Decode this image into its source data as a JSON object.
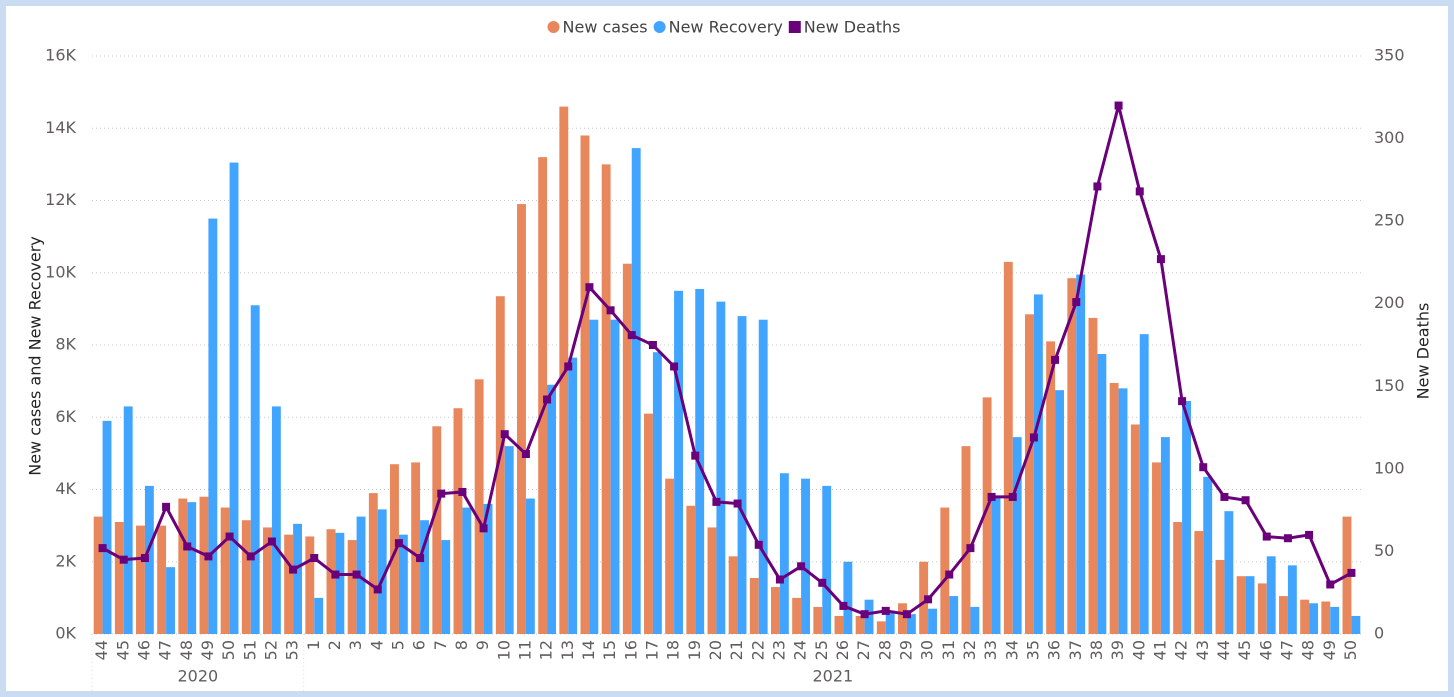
{
  "chart_data": {
    "type": "bar-line",
    "y_label": "New cases and New Recovery",
    "y2_label": "New Deaths",
    "categories": [
      "44",
      "45",
      "46",
      "47",
      "48",
      "49",
      "50",
      "51",
      "52",
      "53",
      "1",
      "2",
      "3",
      "4",
      "5",
      "6",
      "7",
      "8",
      "9",
      "10",
      "11",
      "12",
      "13",
      "14",
      "15",
      "16",
      "17",
      "18",
      "19",
      "20",
      "21",
      "22",
      "23",
      "24",
      "25",
      "26",
      "27",
      "28",
      "29",
      "30",
      "31",
      "32",
      "33",
      "34",
      "35",
      "36",
      "37",
      "38",
      "39",
      "40",
      "41",
      "42",
      "43",
      "44",
      "45",
      "46",
      "47",
      "48",
      "49",
      "50"
    ],
    "groups": [
      {
        "label": "2020",
        "size": 10
      },
      {
        "label": "2021",
        "size": 50
      }
    ],
    "series": [
      {
        "name": "New cases",
        "color": "#e8875c",
        "kind": "bar",
        "values": [
          3250,
          3100,
          3000,
          3000,
          3750,
          3800,
          3500,
          3150,
          2950,
          2750,
          2700,
          2900,
          2600,
          3900,
          4700,
          4750,
          5750,
          6250,
          7050,
          9350,
          11900,
          13200,
          14600,
          13800,
          13000,
          10250,
          6100,
          4300,
          3550,
          2950,
          2150,
          1550,
          1300,
          1000,
          750,
          500,
          500,
          350,
          850,
          2000,
          3500,
          5200,
          6550,
          10300,
          8850,
          8100,
          9850,
          8750,
          6950,
          5800,
          4750,
          3100,
          2850,
          2050,
          1600,
          1400,
          1050,
          950,
          900,
          3250
        ]
      },
      {
        "name": "New Recovery",
        "color": "#41a4ff",
        "kind": "bar",
        "values": [
          5900,
          6300,
          4100,
          1850,
          3650,
          11500,
          13050,
          9100,
          6300,
          3050,
          1000,
          2800,
          3250,
          3450,
          2750,
          3150,
          2600,
          3500,
          3600,
          5200,
          3750,
          6900,
          7650,
          8700,
          8700,
          13450,
          7800,
          9500,
          9550,
          9200,
          8800,
          8700,
          4450,
          4300,
          4100,
          2000,
          950,
          650,
          550,
          700,
          1050,
          750,
          3800,
          5450,
          9400,
          6750,
          9950,
          7750,
          6800,
          8300,
          5450,
          6450,
          4350,
          3400,
          1600,
          2150,
          1900,
          850,
          750,
          500
        ]
      },
      {
        "name": "New Deaths",
        "color": "#6b007b",
        "kind": "line",
        "axis": "y2",
        "values": [
          52,
          45,
          46,
          77,
          53,
          47,
          59,
          47,
          56,
          39,
          46,
          36,
          36,
          27,
          55,
          46,
          85,
          86,
          64,
          121,
          109,
          142,
          162,
          210,
          196,
          181,
          175,
          162,
          108,
          80,
          79,
          54,
          33,
          41,
          31,
          17,
          12,
          14,
          12,
          21,
          36,
          52,
          83,
          83,
          119,
          166,
          201,
          271,
          320,
          268,
          227,
          141,
          101,
          83,
          81,
          59,
          58,
          60,
          30,
          37
        ]
      }
    ],
    "ylim": [
      0,
      16000
    ],
    "yticks": [
      {
        "value": 0,
        "label": "0K"
      },
      {
        "value": 2000,
        "label": "2K"
      },
      {
        "value": 4000,
        "label": "4K"
      },
      {
        "value": 6000,
        "label": "6K"
      },
      {
        "value": 8000,
        "label": "8K"
      },
      {
        "value": 10000,
        "label": "10K"
      },
      {
        "value": 12000,
        "label": "12K"
      },
      {
        "value": 14000,
        "label": "14K"
      },
      {
        "value": 16000,
        "label": "16K"
      }
    ],
    "y2lim": [
      0,
      350
    ],
    "y2ticks": [
      0,
      50,
      100,
      150,
      200,
      250,
      300,
      350
    ],
    "grid": true,
    "legend": "top"
  }
}
